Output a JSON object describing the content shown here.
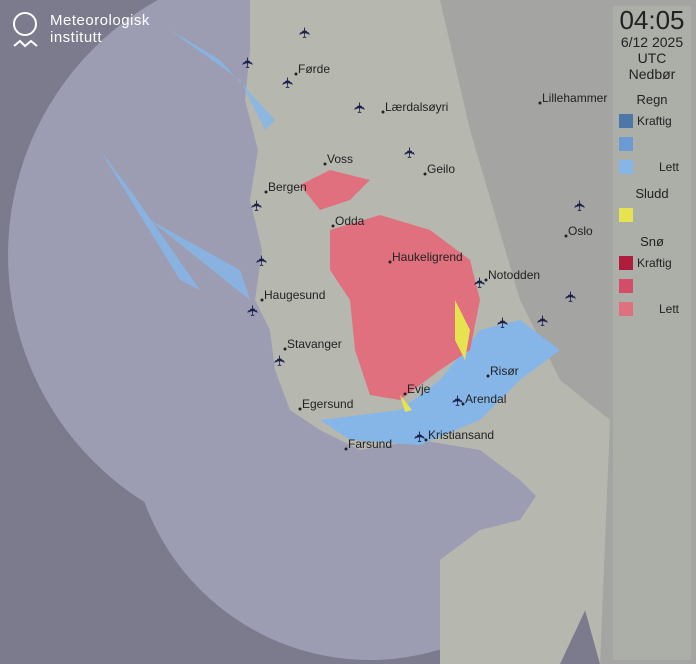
{
  "logo": {
    "line1": "Meteorologisk",
    "line2": "institutt"
  },
  "legend": {
    "time": "04:05",
    "date": "6/12 2025",
    "timezone": "UTC",
    "product": "Nedbør",
    "groups": [
      {
        "title": "Regn",
        "items": [
          {
            "label": "Kraftig",
            "color": "#4d77a8"
          },
          {
            "label": "",
            "color": "#6b9bd2"
          },
          {
            "label": "Lett",
            "color": "#86b6e8"
          }
        ]
      },
      {
        "title": "Sludd",
        "items": [
          {
            "label": "",
            "color": "#e6e250"
          }
        ]
      },
      {
        "title": "Snø",
        "items": [
          {
            "label": "Kraftig",
            "color": "#b01c3c"
          },
          {
            "label": "",
            "color": "#d44d68"
          },
          {
            "label": "Lett",
            "color": "#e0707e"
          }
        ]
      }
    ]
  },
  "colors": {
    "sea": "#7c7b8d",
    "radar_coverage": "#9c9db3",
    "land": "#b6b8b0",
    "rain": "#86b6e8",
    "snow": "#e0707e",
    "sleet": "#e6e250"
  },
  "cities": [
    "Førde",
    "Lærdalsøyri",
    "Lillehammer",
    "Voss",
    "Geilo",
    "Bergen",
    "Odda",
    "Haukeligrend",
    "Oslo",
    "Notodden",
    "Haugesund",
    "Stavanger",
    "Risør",
    "Evje",
    "Arendal",
    "Egersund",
    "Kristiansand",
    "Farsund"
  ],
  "airport_icon": "airplane-icon"
}
